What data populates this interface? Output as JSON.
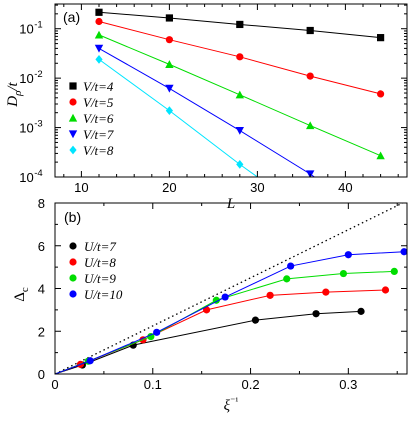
{
  "chart_data": [
    {
      "panel": "(a)",
      "type": "line",
      "xlabel": "L",
      "ylabel": "Dρ/t",
      "xlim": [
        7,
        47
      ],
      "ylim_log10": [
        -4,
        -0.5
      ],
      "yscale": "log",
      "xticks": [
        10,
        20,
        30,
        40
      ],
      "xtick_labels": [
        "10",
        "20",
        "30",
        "40"
      ],
      "yticks": [
        -4,
        -3,
        -2,
        -1
      ],
      "ytick_labels": [
        "10",
        "10",
        "10",
        "10"
      ],
      "ytick_exponents": [
        "-4",
        "-3",
        "-2",
        "-1"
      ],
      "legend": "left",
      "series": [
        {
          "name": "V/t=4",
          "color": "#000000",
          "marker": "square",
          "x": [
            12,
            20,
            28,
            36,
            44
          ],
          "y": [
            0.215,
            0.165,
            0.122,
            0.092,
            0.066
          ]
        },
        {
          "name": "V/t=5",
          "color": "#ff0000",
          "marker": "circle",
          "x": [
            12,
            20,
            28,
            36,
            44
          ],
          "y": [
            0.14,
            0.06,
            0.027,
            0.011,
            0.0048
          ]
        },
        {
          "name": "V/t=6",
          "color": "#00dd00",
          "marker": "triangle-up",
          "x": [
            12,
            20,
            28,
            36,
            44
          ],
          "y": [
            0.075,
            0.019,
            0.0046,
            0.0011,
            0.00027
          ]
        },
        {
          "name": "V/t=7",
          "color": "#0000ff",
          "marker": "triangle-down",
          "x": [
            12,
            20,
            28,
            36
          ],
          "y": [
            0.04,
            0.0062,
            0.00087,
            0.000115
          ]
        },
        {
          "name": "V/t=8",
          "color": "#00e5ff",
          "marker": "diamond",
          "x": [
            12,
            20,
            28
          ],
          "y": [
            0.024,
            0.0022,
            0.00018
          ]
        }
      ]
    },
    {
      "panel": "(b)",
      "type": "line",
      "xlabel": "ξ⁻¹",
      "ylabel": "Δc",
      "xlim": [
        0,
        0.36
      ],
      "ylim": [
        0,
        8
      ],
      "xticks": [
        0,
        0.1,
        0.2,
        0.3
      ],
      "xtick_labels": [
        "0",
        "0.1",
        "0.2",
        "0.3"
      ],
      "yticks": [
        0,
        2,
        4,
        6,
        8
      ],
      "ytick_labels": [
        "0",
        "2",
        "4",
        "6",
        "8"
      ],
      "legend": "top-left",
      "guide_line": {
        "style": "dotted",
        "x": [
          0,
          0.36
        ],
        "y": [
          0,
          8.1
        ]
      },
      "series": [
        {
          "name": "U/t=7",
          "color": "#000000",
          "marker": "circle",
          "x": [
            0.028,
            0.08,
            0.205,
            0.267,
            0.313
          ],
          "y": [
            0.42,
            1.35,
            2.52,
            2.82,
            2.93
          ]
        },
        {
          "name": "U/t=8",
          "color": "#ff0000",
          "marker": "circle",
          "x": [
            0.026,
            0.09,
            0.155,
            0.22,
            0.277,
            0.338
          ],
          "y": [
            0.45,
            1.6,
            3.0,
            3.68,
            3.83,
            3.93
          ]
        },
        {
          "name": "U/t=9",
          "color": "#00dd00",
          "marker": "circle",
          "x": [
            0.034,
            0.098,
            0.165,
            0.237,
            0.295,
            0.347
          ],
          "y": [
            0.6,
            1.75,
            3.45,
            4.45,
            4.7,
            4.8
          ]
        },
        {
          "name": "U/t=10",
          "color": "#0000ff",
          "marker": "circle",
          "x": [
            0.036,
            0.104,
            0.174,
            0.241,
            0.3,
            0.357
          ],
          "y": [
            0.62,
            1.95,
            3.6,
            5.05,
            5.58,
            5.72
          ]
        }
      ]
    }
  ]
}
